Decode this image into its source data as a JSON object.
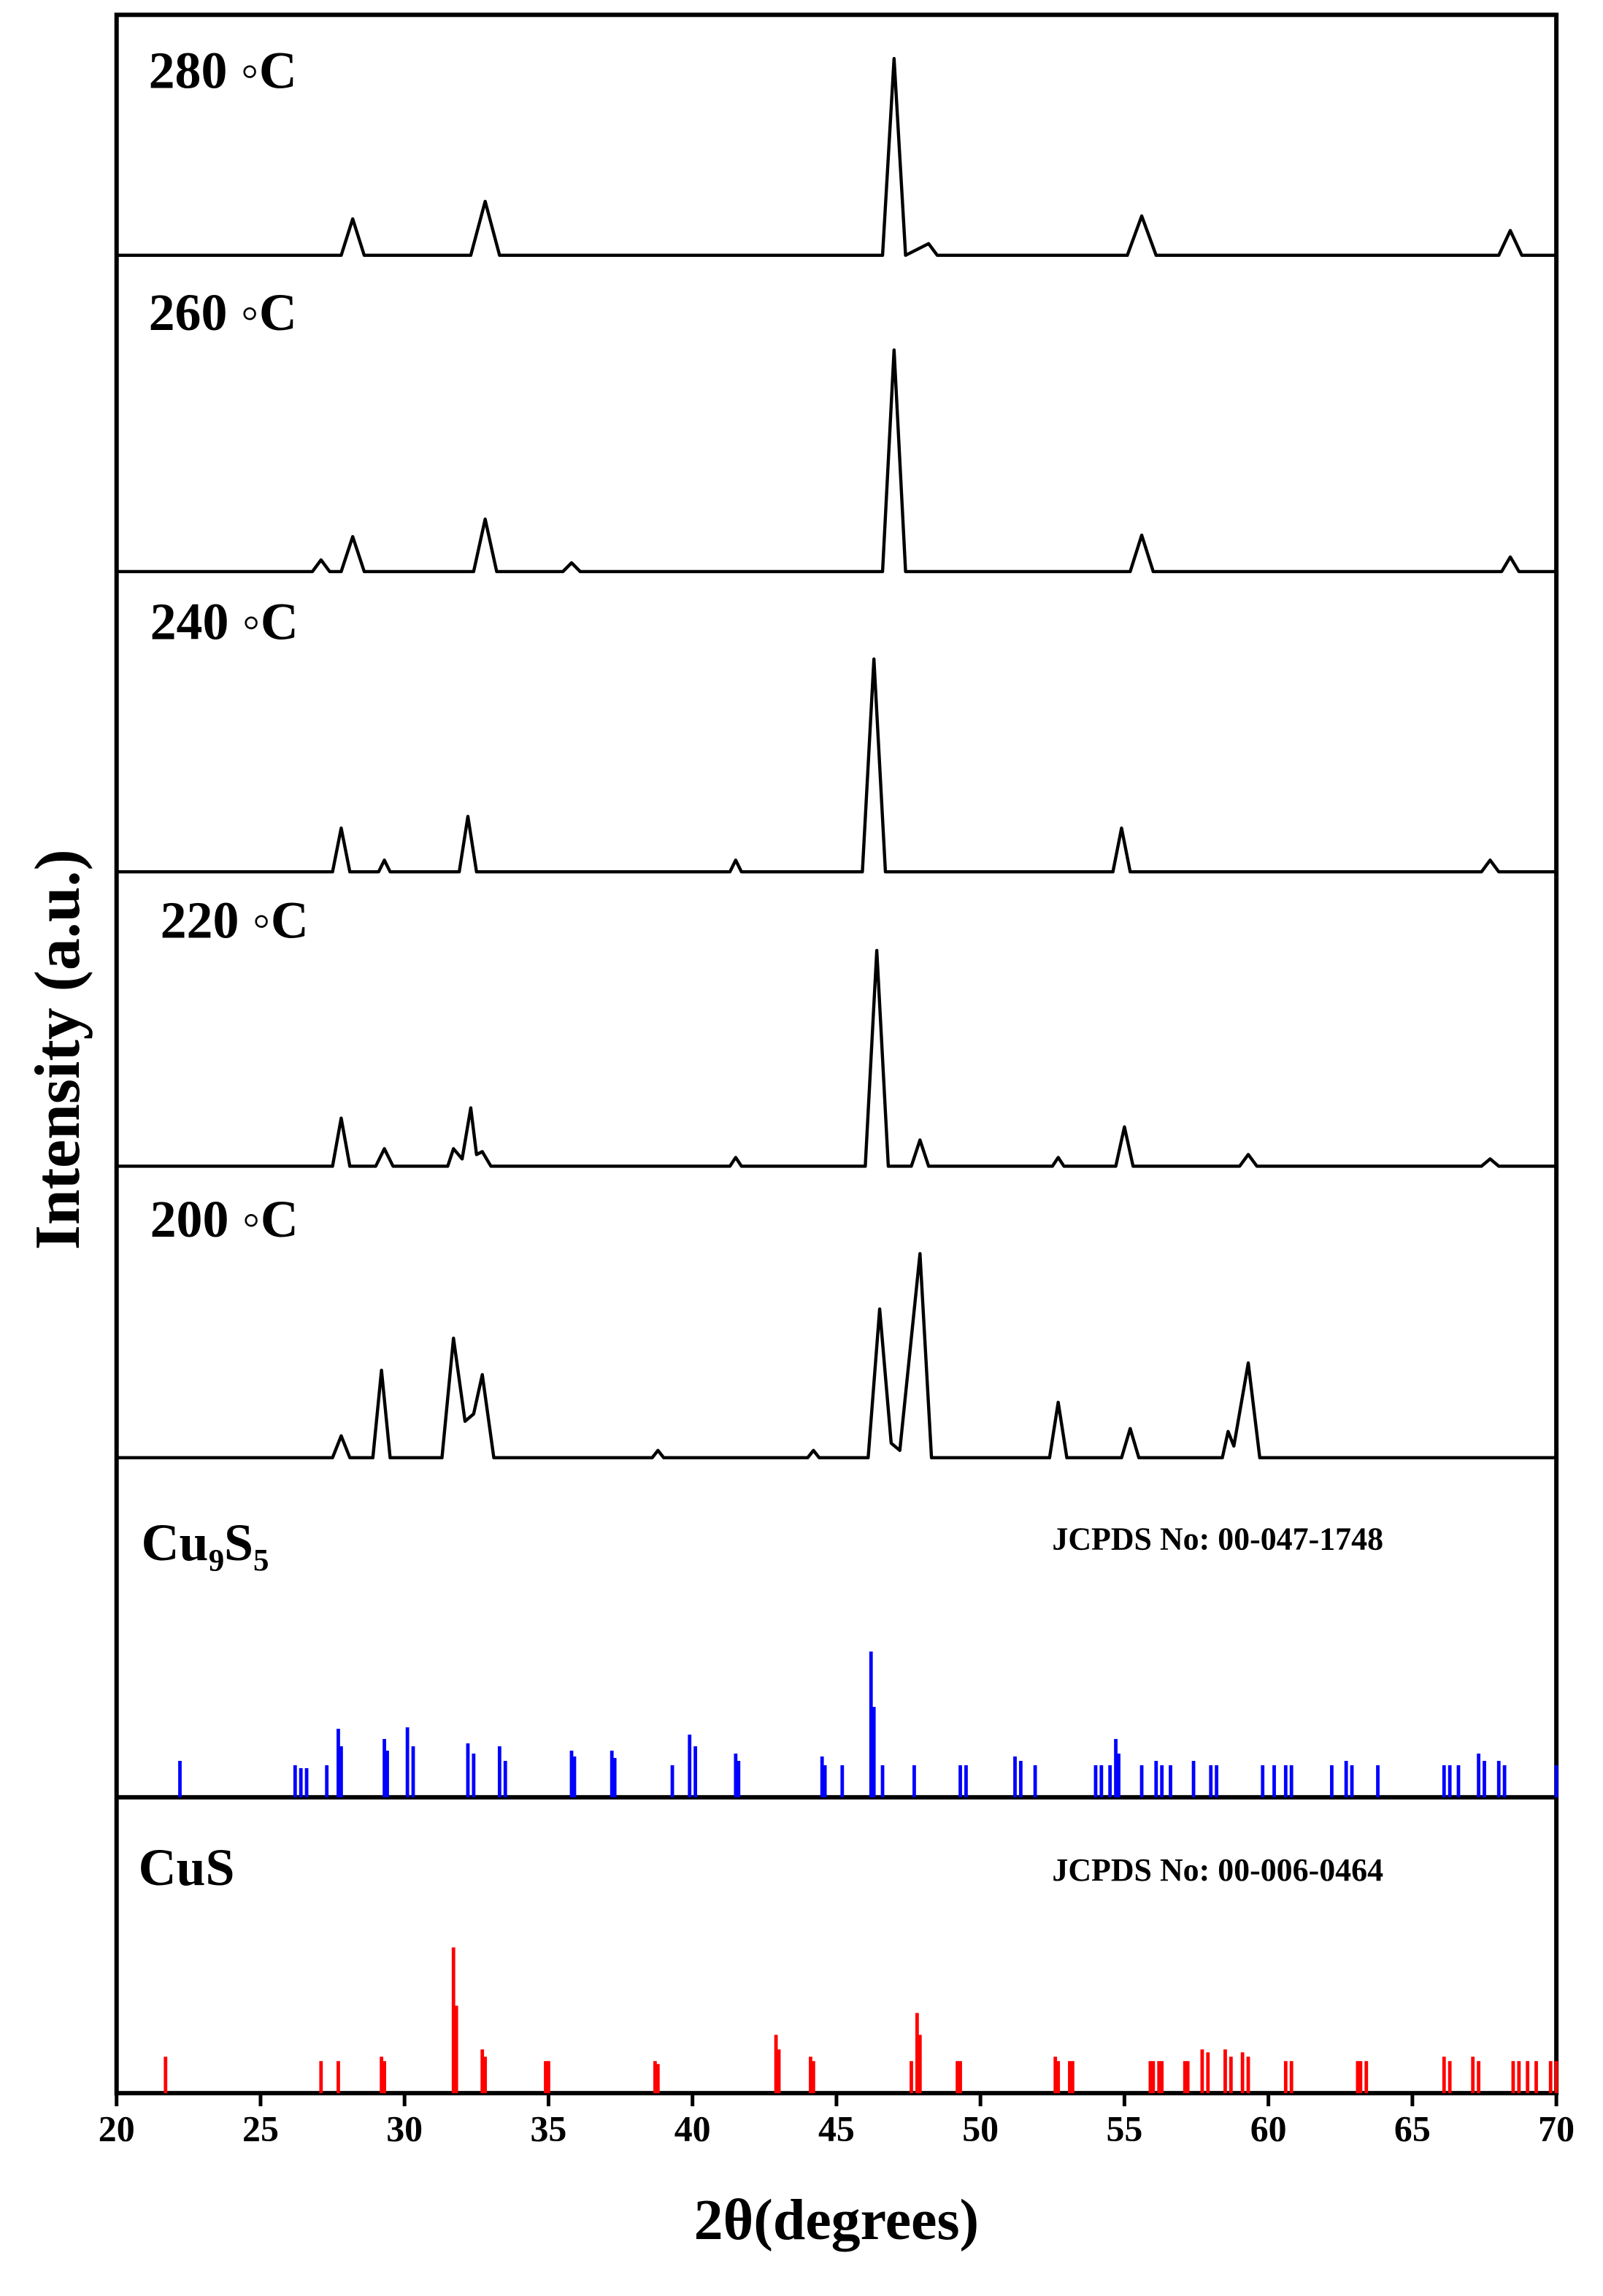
{
  "chart_data": {
    "type": "line",
    "xlabel": "2θ(degrees)",
    "ylabel": "Intensity (a.u.)",
    "xlim": [
      20,
      70
    ],
    "xticks": [
      20,
      25,
      30,
      35,
      40,
      45,
      50,
      55,
      60,
      65,
      70
    ],
    "series": [
      {
        "name": "280 ◦C",
        "color": "#000000",
        "x": [
          20,
          27.8,
          28.2,
          28.6,
          32.3,
          32.8,
          33.3,
          46.6,
          47.0,
          47.4,
          48.2,
          48.5,
          55.1,
          55.6,
          56.1,
          68.0,
          68.4,
          68.8,
          70
        ],
        "values": [
          0,
          0,
          25,
          0,
          0,
          37,
          0,
          0,
          135,
          0,
          8,
          0,
          0,
          27,
          0,
          0,
          17,
          0,
          0
        ]
      },
      {
        "name": "260 ◦C",
        "color": "#000000",
        "x": [
          20,
          26.8,
          27.1,
          27.4,
          27.8,
          28.2,
          28.6,
          32.4,
          32.8,
          33.2,
          35.5,
          35.8,
          36.1,
          46.6,
          47.0,
          47.4,
          55.2,
          55.6,
          56.0,
          68.1,
          68.4,
          68.7,
          70
        ],
        "values": [
          0,
          0,
          8,
          0,
          0,
          24,
          0,
          0,
          36,
          0,
          0,
          6,
          0,
          0,
          152,
          0,
          0,
          25,
          0,
          0,
          10,
          0,
          0
        ]
      },
      {
        "name": "240 ◦C",
        "color": "#000000",
        "x": [
          20,
          27.5,
          27.8,
          28.1,
          29.1,
          29.3,
          29.5,
          31.9,
          32.2,
          32.5,
          41.3,
          41.5,
          41.7,
          45.9,
          46.3,
          46.7,
          54.6,
          54.9,
          55.2,
          67.4,
          67.7,
          68.0,
          70
        ],
        "values": [
          0,
          0,
          30,
          0,
          0,
          8,
          0,
          0,
          38,
          0,
          0,
          8,
          0,
          0,
          146,
          0,
          0,
          30,
          0,
          0,
          8,
          0,
          0
        ]
      },
      {
        "name": "220 ◦C",
        "color": "#000000",
        "x": [
          20,
          27.5,
          27.8,
          28.1,
          29.0,
          29.3,
          29.6,
          31.5,
          31.7,
          32.0,
          32.3,
          32.5,
          32.7,
          33.0,
          41.3,
          41.5,
          41.7,
          46.0,
          46.4,
          46.8,
          47.6,
          47.9,
          48.2,
          52.5,
          52.7,
          52.9,
          54.7,
          55.0,
          55.3,
          59.0,
          59.3,
          59.6,
          67.4,
          67.7,
          68.0,
          70
        ],
        "values": [
          0,
          0,
          33,
          0,
          0,
          12,
          0,
          0,
          12,
          5,
          40,
          8,
          10,
          0,
          0,
          6,
          0,
          0,
          148,
          0,
          0,
          18,
          0,
          0,
          6,
          0,
          0,
          27,
          0,
          0,
          8,
          0,
          0,
          5,
          0,
          0
        ]
      },
      {
        "name": "200 ◦C",
        "color": "#000000",
        "x": [
          20,
          27.5,
          27.8,
          28.1,
          28.9,
          29.2,
          29.5,
          31.3,
          31.7,
          32.1,
          32.4,
          32.7,
          33.1,
          38.6,
          38.8,
          39.0,
          44.0,
          44.2,
          44.4,
          46.1,
          46.5,
          46.9,
          47.2,
          47.9,
          48.3,
          52.4,
          52.7,
          53.0,
          54.9,
          55.2,
          55.5,
          58.4,
          58.6,
          58.8,
          59.3,
          59.7,
          70
        ],
        "values": [
          0,
          0,
          15,
          0,
          0,
          60,
          0,
          0,
          82,
          25,
          30,
          57,
          0,
          0,
          5,
          0,
          0,
          5,
          0,
          0,
          102,
          10,
          5,
          140,
          0,
          0,
          38,
          0,
          0,
          20,
          0,
          0,
          18,
          8,
          65,
          0,
          0
        ]
      }
    ],
    "references": [
      {
        "name": "Cu₉S₅",
        "annotation": "JCPDS No: 00-047-1748",
        "color": "#0000ff",
        "x": [
          22.2,
          26.2,
          26.4,
          26.6,
          27.3,
          27.7,
          27.8,
          29.3,
          29.4,
          30.1,
          30.3,
          32.2,
          32.4,
          33.3,
          33.5,
          35.8,
          35.9,
          37.2,
          37.3,
          39.3,
          39.9,
          40.1,
          41.5,
          41.6,
          44.5,
          44.6,
          45.2,
          46.2,
          46.3,
          46.6,
          47.7,
          49.3,
          49.5,
          51.2,
          51.4,
          51.9,
          54.0,
          54.2,
          54.5,
          54.7,
          54.8,
          55.6,
          56.1,
          56.3,
          56.6,
          57.4,
          58.0,
          58.2,
          59.8,
          60.2,
          60.6,
          60.8,
          62.2,
          62.7,
          62.9,
          63.8,
          66.1,
          66.3,
          66.6,
          67.3,
          67.5,
          68.0,
          68.2,
          70.0
        ],
        "values": [
          25,
          22,
          20,
          20,
          22,
          47,
          35,
          40,
          32,
          48,
          35,
          37,
          30,
          35,
          25,
          32,
          28,
          32,
          27,
          22,
          43,
          35,
          30,
          25,
          28,
          22,
          22,
          100,
          62,
          22,
          22,
          22,
          22,
          28,
          25,
          22,
          22,
          22,
          22,
          40,
          30,
          22,
          25,
          22,
          22,
          25,
          22,
          22,
          22,
          22,
          22,
          22,
          22,
          25,
          22,
          22,
          22,
          22,
          22,
          30,
          25,
          25,
          22,
          22
        ]
      },
      {
        "name": "CuS",
        "annotation": "JCPDS No: 00-006-0464",
        "color": "#ff0000",
        "x": [
          21.7,
          27.1,
          27.7,
          29.2,
          29.3,
          31.7,
          31.8,
          32.7,
          32.8,
          34.9,
          35.0,
          38.7,
          38.8,
          42.9,
          43.0,
          44.1,
          44.2,
          47.6,
          47.8,
          47.9,
          49.2,
          49.3,
          52.6,
          52.7,
          53.1,
          53.2,
          55.9,
          56.0,
          56.2,
          56.3,
          57.1,
          57.2,
          57.7,
          57.9,
          58.5,
          58.7,
          59.1,
          59.3,
          60.6,
          60.8,
          63.1,
          63.2,
          63.4,
          66.1,
          66.3,
          67.1,
          67.3,
          68.5,
          68.7,
          69.0,
          69.3,
          69.8,
          70.0
        ],
        "values": [
          25,
          22,
          22,
          25,
          22,
          100,
          60,
          30,
          25,
          22,
          22,
          22,
          20,
          40,
          30,
          25,
          22,
          22,
          55,
          40,
          22,
          22,
          25,
          22,
          22,
          22,
          22,
          22,
          22,
          22,
          22,
          22,
          30,
          28,
          30,
          25,
          28,
          25,
          22,
          22,
          22,
          22,
          22,
          25,
          22,
          25,
          22,
          22,
          22,
          22,
          22,
          22,
          22
        ]
      }
    ]
  }
}
